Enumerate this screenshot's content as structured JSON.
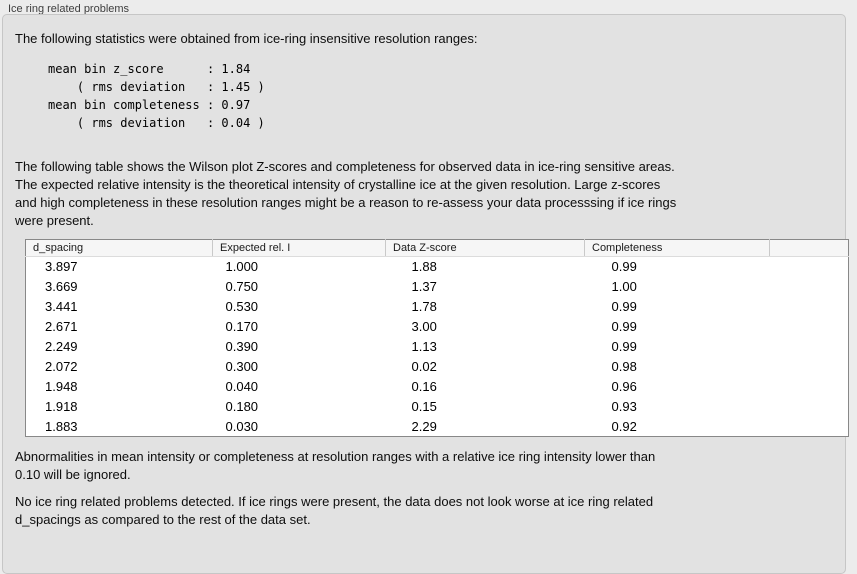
{
  "panel": {
    "title": "Ice ring related problems"
  },
  "intro": "The following statistics were obtained from ice-ring insensitive resolution ranges:",
  "stats_block": [
    "mean bin z_score      : 1.84",
    "    ( rms deviation   : 1.45 )",
    "mean bin completeness : 0.97",
    "    ( rms deviation   : 0.04 )"
  ],
  "description_lines": [
    "The following table shows the Wilson plot Z-scores and completeness for observed data in ice-ring sensitive areas.",
    "The expected relative intensity is the theoretical intensity of crystalline ice at the given resolution. Large z-scores",
    "and high completeness in these resolution ranges might be a reason to re-assess your data processsing if ice rings",
    "were present."
  ],
  "table": {
    "columns": [
      "d_spacing",
      "Expected rel. I",
      "Data Z-score",
      "Completeness"
    ],
    "rows": [
      [
        "3.897",
        "1.000",
        "1.88",
        "0.99"
      ],
      [
        "3.669",
        "0.750",
        "1.37",
        "1.00"
      ],
      [
        "3.441",
        "0.530",
        "1.78",
        "0.99"
      ],
      [
        "2.671",
        "0.170",
        "3.00",
        "0.99"
      ],
      [
        "2.249",
        "0.390",
        "1.13",
        "0.99"
      ],
      [
        "2.072",
        "0.300",
        "0.02",
        "0.98"
      ],
      [
        "1.948",
        "0.040",
        "0.16",
        "0.96"
      ],
      [
        "1.918",
        "0.180",
        "0.15",
        "0.93"
      ],
      [
        "1.883",
        "0.030",
        "2.29",
        "0.92"
      ]
    ]
  },
  "footnote_lines": [
    "Abnormalities in mean intensity or completeness at resolution ranges with a relative ice ring intensity lower than",
    "0.10 will be ignored."
  ],
  "conclusion_lines": [
    "No ice ring related problems detected. If ice rings were present, the data does not look worse at ice ring related",
    "d_spacings as compared to the rest of the data set."
  ],
  "colors": {
    "outer_background": "#ececec",
    "panel_background": "#e2e2e2",
    "panel_border": "#c6c6c6",
    "table_background": "#ffffff",
    "table_border": "#888888",
    "table_header_background": "#f6f6f6",
    "text": "#111111"
  }
}
